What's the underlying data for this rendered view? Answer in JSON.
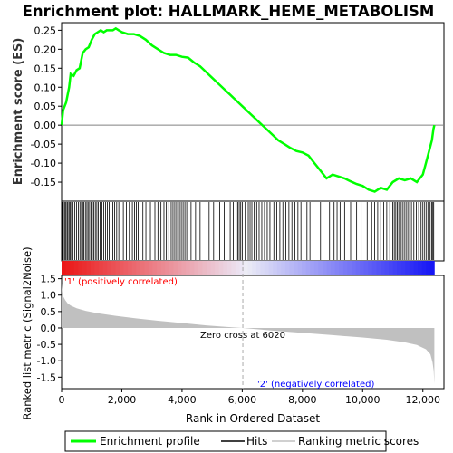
{
  "chart_data": {
    "type": "line",
    "title": "Enrichment plot: HALLMARK_HEME_METABOLISM",
    "xlabel": "Rank in Ordered Dataset",
    "ylabel_top": "Enrichment score (ES)",
    "ylabel_bottom": "Ranked list metric (Signal2Noise)",
    "x_ticks": [
      0,
      2000,
      4000,
      6000,
      8000,
      10000,
      12000
    ],
    "x_tick_labels": [
      "0",
      "2,000",
      "4,000",
      "6,000",
      "8,000",
      "10,000",
      "12,000"
    ],
    "xlim": [
      0,
      12700
    ],
    "es_ylim": [
      -0.2,
      0.27
    ],
    "es_ticks": [
      0.25,
      0.2,
      0.15,
      0.1,
      0.05,
      0.0,
      -0.05,
      -0.1,
      -0.15
    ],
    "es_tick_labels": [
      "0.25",
      "0.20",
      "0.15",
      "0.10",
      "0.05",
      "0.00",
      "-0.05",
      "-0.10",
      "-0.15"
    ],
    "metric_ylim": [
      -1.85,
      1.6
    ],
    "metric_ticks": [
      1.5,
      1.0,
      0.5,
      0.0,
      -0.5,
      -1.0,
      -1.5
    ],
    "metric_tick_labels": [
      "1.5",
      "1.0",
      "0.5",
      "0.0",
      "-0.5",
      "-1.0",
      "-1.5"
    ],
    "series": [
      {
        "name": "Enrichment profile",
        "color": "#00ff00",
        "x": [
          0,
          50,
          150,
          250,
          300,
          400,
          500,
          600,
          700,
          800,
          900,
          1000,
          1100,
          1200,
          1300,
          1400,
          1500,
          1600,
          1700,
          1800,
          1900,
          2000,
          2200,
          2400,
          2600,
          2800,
          3000,
          3200,
          3400,
          3600,
          3800,
          4000,
          4200,
          4400,
          4600,
          4800,
          5000,
          5200,
          5400,
          5600,
          5800,
          6000,
          6200,
          6400,
          6600,
          6800,
          7000,
          7200,
          7400,
          7600,
          7800,
          8000,
          8200,
          8400,
          8600,
          8800,
          9000,
          9200,
          9400,
          9600,
          9800,
          10000,
          10200,
          10400,
          10600,
          10800,
          11000,
          11200,
          11400,
          11600,
          11800,
          12000,
          12100,
          12200,
          12300,
          12350,
          12380
        ],
        "values": [
          0.0,
          0.04,
          0.06,
          0.1,
          0.135,
          0.13,
          0.145,
          0.15,
          0.19,
          0.2,
          0.205,
          0.225,
          0.24,
          0.245,
          0.25,
          0.245,
          0.25,
          0.25,
          0.25,
          0.255,
          0.25,
          0.245,
          0.24,
          0.24,
          0.235,
          0.225,
          0.21,
          0.2,
          0.19,
          0.185,
          0.185,
          0.18,
          0.178,
          0.165,
          0.155,
          0.14,
          0.125,
          0.11,
          0.095,
          0.08,
          0.065,
          0.05,
          0.035,
          0.02,
          0.005,
          -0.01,
          -0.025,
          -0.04,
          -0.05,
          -0.06,
          -0.068,
          -0.072,
          -0.08,
          -0.1,
          -0.12,
          -0.14,
          -0.13,
          -0.135,
          -0.14,
          -0.148,
          -0.155,
          -0.16,
          -0.17,
          -0.175,
          -0.165,
          -0.17,
          -0.15,
          -0.14,
          -0.145,
          -0.14,
          -0.15,
          -0.13,
          -0.1,
          -0.07,
          -0.04,
          -0.01,
          0.0
        ]
      },
      {
        "name": "Hits",
        "color": "#000000",
        "hit_ranks": [
          20,
          60,
          100,
          140,
          180,
          210,
          250,
          290,
          330,
          380,
          440,
          500,
          560,
          610,
          660,
          700,
          740,
          790,
          840,
          880,
          930,
          980,
          1020,
          1070,
          1120,
          1170,
          1220,
          1280,
          1340,
          1400,
          1460,
          1520,
          1580,
          1640,
          1700,
          1760,
          1830,
          1900,
          2050,
          2150,
          2250,
          2350,
          2420,
          2480,
          2540,
          2600,
          2700,
          2800,
          2950,
          3100,
          3200,
          3300,
          3400,
          3480,
          3560,
          3640,
          3700,
          3760,
          3820,
          3880,
          3940,
          4000,
          4060,
          4120,
          4180,
          4300,
          4450,
          4600,
          4900,
          5050,
          5250,
          5400,
          5600,
          5700,
          5800,
          5850,
          5900,
          5950,
          6000,
          6100,
          6200,
          6260,
          6320,
          6400,
          6480,
          6560,
          6650,
          6740,
          6830,
          6920,
          7050,
          7150,
          7250,
          7350,
          7450,
          7550,
          7650,
          7750,
          7850,
          7950,
          8050,
          8150,
          8250,
          8600,
          8900,
          9050,
          9150,
          9250,
          9400,
          9600,
          9800,
          9950,
          10150,
          10300,
          10400,
          10500,
          10600,
          10700,
          10800,
          10900,
          11000,
          11050,
          11100,
          11150,
          11200,
          11260,
          11320,
          11380,
          11440,
          11500,
          11560,
          11620,
          11700,
          11780,
          11860,
          11940,
          12000,
          12060,
          12120,
          12180,
          12240,
          12290,
          12330,
          12360
        ]
      },
      {
        "name": "Ranking metric scores",
        "color": "#c0c0c0",
        "x": [
          0,
          20,
          60,
          120,
          200,
          300,
          500,
          800,
          1200,
          1800,
          2500,
          3200,
          4000,
          4800,
          5500,
          6020,
          6500,
          7000,
          8000,
          9000,
          10000,
          10800,
          11400,
          11800,
          12100,
          12250,
          12320,
          12360,
          12380
        ],
        "values": [
          1.35,
          1.1,
          0.95,
          0.85,
          0.75,
          0.68,
          0.6,
          0.52,
          0.45,
          0.37,
          0.29,
          0.22,
          0.15,
          0.08,
          0.03,
          0.0,
          -0.04,
          -0.08,
          -0.15,
          -0.22,
          -0.29,
          -0.36,
          -0.44,
          -0.52,
          -0.65,
          -0.8,
          -1.05,
          -1.3,
          -1.7
        ]
      }
    ],
    "annotations": {
      "zero_cross": "Zero cross at 6020",
      "pos_label": "'1' (positively correlated)",
      "neg_label": "'2' (negatively correlated)",
      "zero_cross_rank": 6020,
      "pos_color": "#ff0000",
      "neg_color": "#0000ff"
    },
    "legend": {
      "placement": "bottom",
      "items": [
        "Enrichment profile",
        "Hits",
        "Ranking metric scores"
      ]
    }
  }
}
